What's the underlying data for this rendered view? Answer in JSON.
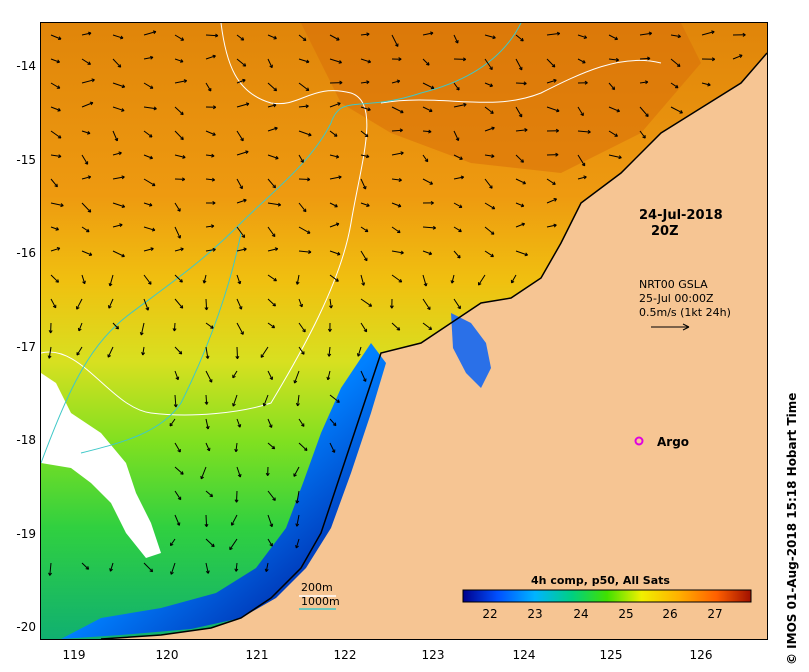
{
  "map": {
    "lat_ticks": [
      "-14",
      "-15",
      "-16",
      "-17",
      "-18",
      "-19",
      "-20"
    ],
    "lon_ticks": [
      "119",
      "120",
      "121",
      "122",
      "123",
      "124",
      "125",
      "126"
    ],
    "land_color": "#f6c593",
    "coast_color": "#000000",
    "contour_200m_color": "#ffffff",
    "contour_1000m_color": "#3ec8c8",
    "argo_color": "#e000e0"
  },
  "annotations": {
    "obs_date": "24-Jul-2018",
    "obs_time": "20Z",
    "gsla_title": "NRT00 GSLA",
    "gsla_time": "25-Jul 00:00Z",
    "gsla_scale": "0.5m/s (1kt 24h)",
    "argo_label": "Argo",
    "legend_200m": "200m",
    "legend_1000m": "1000m"
  },
  "colorbar": {
    "title": "4h comp, p50, All Sats",
    "ticks": [
      "22",
      "23",
      "24",
      "25",
      "26",
      "27"
    ],
    "colors": [
      "#00008b",
      "#0050ff",
      "#00b4ff",
      "#00d080",
      "#40e000",
      "#f0f000",
      "#ffb000",
      "#ff6000",
      "#a01000"
    ]
  },
  "footer": {
    "timestamp": "IMOS 01-Aug-2018 15:18 Hobart Time",
    "copyright_symbol": "©"
  }
}
